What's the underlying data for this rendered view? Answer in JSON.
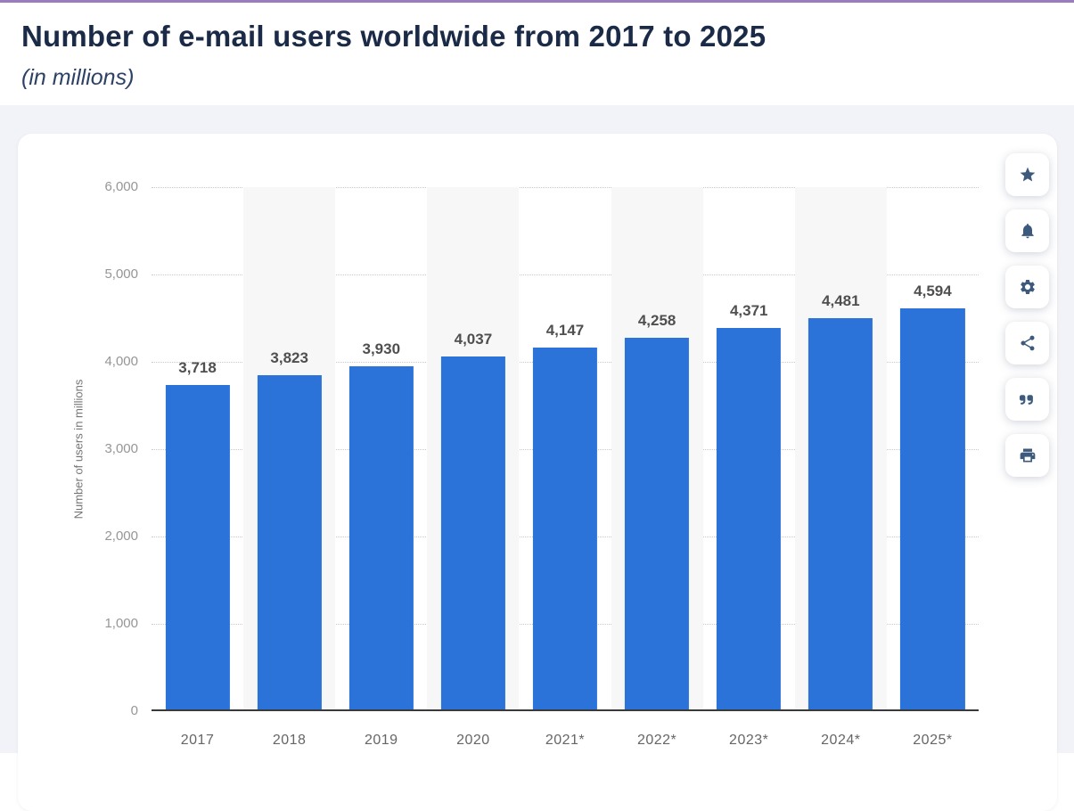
{
  "page": {
    "accent_color": "#9a7bbd",
    "section_bg": "#f2f3f8"
  },
  "header": {
    "title": "Number of e-mail users worldwide from 2017 to 2025",
    "subtitle": "(in millions)"
  },
  "toolbar": {
    "buttons": [
      "star-icon",
      "bell-icon",
      "gear-icon",
      "share-icon",
      "quote-icon",
      "print-icon"
    ]
  },
  "chart_data": {
    "type": "bar",
    "title": "Number of e-mail users worldwide from 2017 to 2025",
    "subtitle": "(in millions)",
    "categories": [
      "2017",
      "2018",
      "2019",
      "2020",
      "2021*",
      "2022*",
      "2023*",
      "2024*",
      "2025*"
    ],
    "values": [
      3718,
      3823,
      3930,
      4037,
      4147,
      4258,
      4371,
      4481,
      4594
    ],
    "value_labels": [
      "3,718",
      "3,823",
      "3,930",
      "4,037",
      "4,147",
      "4,258",
      "4,371",
      "4,481",
      "4,594"
    ],
    "xlabel": "",
    "ylabel": "Number of users in millions",
    "ylim": [
      0,
      6000
    ],
    "ytick_interval": 1000,
    "ytick_labels": [
      "0",
      "1,000",
      "2,000",
      "3,000",
      "4,000",
      "5,000",
      "6,000"
    ],
    "grid": "horizontal-dotted",
    "legend": null,
    "bar_color": "#2b72d9",
    "stripe_color": "#f7f7f8",
    "striped_category_indices": [
      1,
      3,
      5,
      7
    ]
  }
}
